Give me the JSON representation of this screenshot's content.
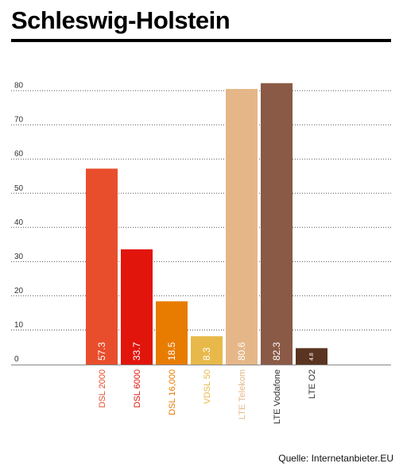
{
  "header": {
    "title": "Schleswig-Holstein"
  },
  "footer": {
    "source": "Quelle: Internetanbieter.EU"
  },
  "chart_data": {
    "type": "bar",
    "title": "Schleswig-Holstein",
    "xlabel": "",
    "ylabel": "",
    "ylim": [
      0,
      85
    ],
    "y_ticks": [
      0,
      10,
      20,
      30,
      40,
      50,
      60,
      70,
      80
    ],
    "grid": true,
    "legend": "none",
    "categories": [
      "DSL 2000",
      "DSL 6000",
      "DSL 16,000",
      "VDSL 50",
      "LTE Telekom",
      "LTE Vodafone",
      "LTE O2"
    ],
    "values": [
      57.3,
      33.7,
      18.5,
      8.3,
      80.6,
      82.3,
      4.8
    ],
    "value_labels": [
      "57.3",
      "33.7",
      "18.5",
      "8.3",
      "80.6",
      "82.3",
      "4.8"
    ],
    "colors": [
      "#e94e2c",
      "#e2150c",
      "#e87c00",
      "#e8b94a",
      "#e5b788",
      "#8a5a46",
      "#5a3420"
    ],
    "label_colors": [
      "#e94e2c",
      "#e2150c",
      "#e87c00",
      "#e8b94a",
      "#e5b788",
      "#333333",
      "#333333"
    ]
  }
}
